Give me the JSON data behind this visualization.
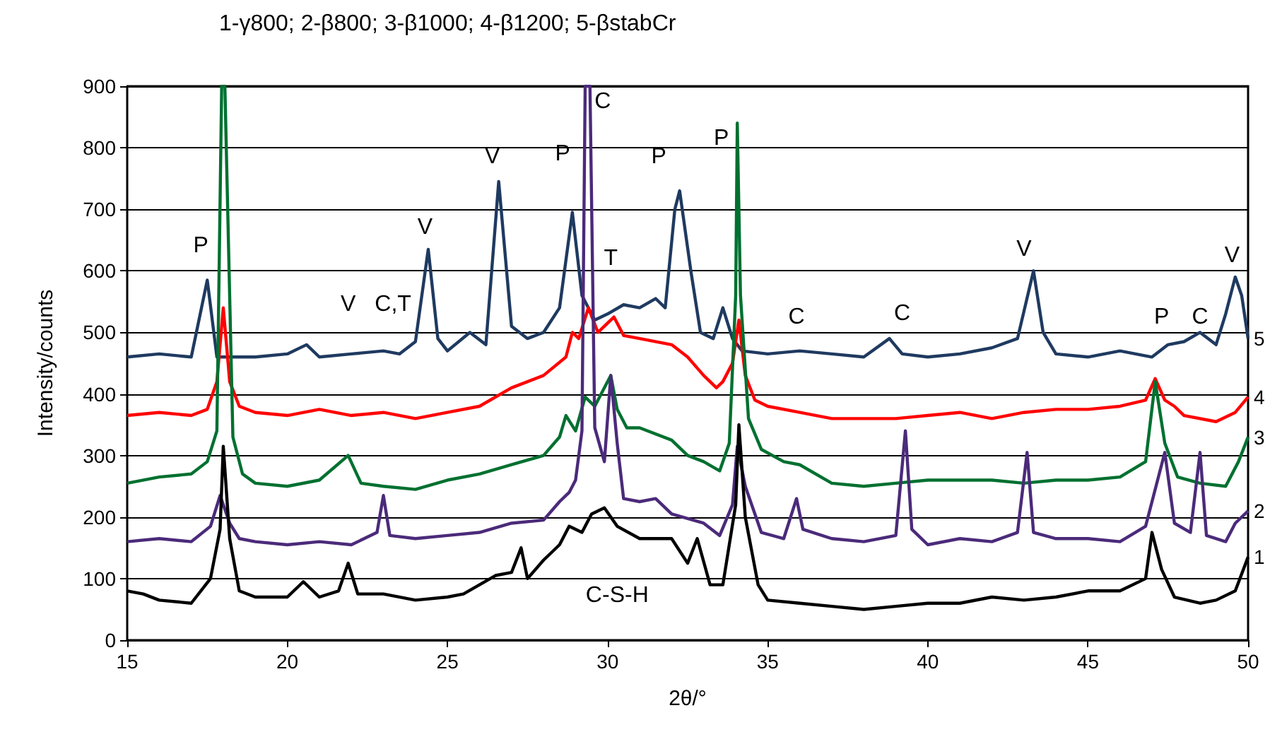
{
  "chart_data": {
    "type": "line",
    "title": "1-γ800; 2-β800; 3-β1000; 4-β1200; 5-βstabCr",
    "xlabel": "2θ/°",
    "ylabel": "Intensity/counts",
    "xlim": [
      15,
      50
    ],
    "xticks": [
      15,
      20,
      25,
      30,
      35,
      40,
      45,
      50
    ],
    "ylim": [
      0,
      900
    ],
    "yticks": [
      0,
      100,
      200,
      300,
      400,
      500,
      600,
      700,
      800,
      900
    ],
    "grid": "y",
    "legend": false,
    "marker": "none",
    "line_style": "solid",
    "series": [
      {
        "name": "5",
        "color": "#1f3a60",
        "x": [
          15,
          16,
          17,
          17.5,
          17.8,
          19,
          20,
          20.6,
          21,
          22,
          23,
          23.5,
          24,
          24.4,
          24.7,
          25,
          25.7,
          26.2,
          26.6,
          27,
          27.5,
          28,
          28.5,
          28.9,
          29.2,
          29.6,
          30,
          30.5,
          31,
          31.5,
          31.8,
          32.1,
          32.25,
          32.6,
          32.9,
          33.3,
          33.6,
          33.9,
          34.2,
          35,
          36,
          37,
          38,
          38.8,
          39.2,
          40,
          41,
          42,
          42.8,
          43.3,
          43.6,
          44,
          45,
          46,
          47,
          47.5,
          48,
          48.5,
          49,
          49.3,
          49.6,
          49.8,
          50
        ],
        "values": [
          460,
          465,
          460,
          585,
          460,
          460,
          465,
          480,
          460,
          465,
          470,
          465,
          485,
          635,
          490,
          470,
          500,
          480,
          745,
          510,
          490,
          500,
          540,
          695,
          560,
          520,
          530,
          545,
          540,
          555,
          540,
          700,
          730,
          600,
          500,
          490,
          540,
          490,
          470,
          465,
          470,
          465,
          460,
          490,
          465,
          460,
          465,
          475,
          490,
          600,
          500,
          465,
          460,
          470,
          460,
          480,
          485,
          500,
          480,
          530,
          590,
          560,
          490
        ]
      },
      {
        "name": "4",
        "color": "#ff0000",
        "x": [
          15,
          16,
          17,
          17.5,
          17.8,
          18,
          18.2,
          18.5,
          19,
          20,
          21,
          22,
          23,
          24,
          25,
          26,
          27,
          28,
          28.7,
          28.9,
          29.1,
          29.4,
          29.7,
          30.2,
          30.5,
          31,
          32,
          32.5,
          33,
          33.4,
          33.6,
          33.9,
          34.1,
          34.3,
          34.6,
          35,
          36,
          37,
          38,
          39,
          40,
          41,
          42,
          43,
          44,
          45,
          46,
          46.8,
          47.1,
          47.4,
          47.7,
          48,
          49,
          49.6,
          50
        ],
        "values": [
          365,
          370,
          365,
          375,
          420,
          540,
          420,
          380,
          370,
          365,
          375,
          365,
          370,
          360,
          370,
          380,
          410,
          430,
          460,
          500,
          490,
          540,
          500,
          525,
          495,
          490,
          480,
          460,
          430,
          410,
          420,
          450,
          520,
          430,
          390,
          380,
          370,
          360,
          360,
          360,
          365,
          370,
          360,
          370,
          375,
          375,
          380,
          390,
          425,
          390,
          380,
          365,
          355,
          370,
          395
        ]
      },
      {
        "name": "3",
        "color": "#007030",
        "x": [
          15,
          16,
          17,
          17.5,
          17.8,
          17.95,
          18.05,
          18.3,
          18.6,
          19,
          20,
          21,
          21.9,
          22.3,
          23,
          24,
          25,
          26,
          27,
          28,
          28.5,
          28.7,
          29,
          29.3,
          29.6,
          29.9,
          30.1,
          30.3,
          30.6,
          31,
          32,
          32.5,
          33,
          33.5,
          33.8,
          34,
          34.05,
          34.15,
          34.4,
          34.8,
          35.5,
          36,
          37,
          38,
          39,
          40,
          41,
          42,
          43,
          44,
          45,
          46,
          46.8,
          47.1,
          47.4,
          47.8,
          48.5,
          49.3,
          49.7,
          50
        ],
        "values": [
          255,
          265,
          270,
          290,
          340,
          900,
          900,
          330,
          270,
          255,
          250,
          260,
          300,
          255,
          250,
          245,
          260,
          270,
          285,
          300,
          330,
          365,
          340,
          395,
          380,
          410,
          430,
          375,
          345,
          345,
          325,
          300,
          290,
          275,
          320,
          560,
          840,
          560,
          360,
          310,
          290,
          285,
          255,
          250,
          255,
          260,
          260,
          260,
          255,
          260,
          260,
          265,
          290,
          420,
          320,
          265,
          255,
          250,
          290,
          330
        ]
      },
      {
        "name": "2",
        "color": "#4b2a7a",
        "x": [
          15,
          16,
          17,
          17.6,
          17.9,
          18.2,
          18.5,
          19,
          20,
          21,
          22,
          22.8,
          23,
          23.2,
          24,
          25,
          26,
          27,
          28,
          28.5,
          28.8,
          29,
          29.2,
          29.3,
          29.45,
          29.6,
          29.9,
          30.1,
          30.3,
          30.5,
          31,
          31.5,
          32,
          33,
          33.5,
          33.9,
          34.05,
          34.3,
          34.8,
          35.5,
          35.9,
          36.1,
          37,
          38,
          39,
          39.3,
          39.5,
          40,
          41,
          42,
          42.8,
          43.1,
          43.3,
          44,
          45,
          46,
          46.8,
          47.4,
          47.7,
          48.2,
          48.5,
          48.7,
          49.3,
          49.6,
          50
        ],
        "values": [
          160,
          165,
          160,
          185,
          235,
          190,
          165,
          160,
          155,
          160,
          155,
          175,
          235,
          170,
          165,
          170,
          175,
          190,
          195,
          225,
          240,
          260,
          340,
          900,
          900,
          345,
          290,
          430,
          320,
          230,
          225,
          230,
          205,
          190,
          170,
          220,
          315,
          250,
          175,
          165,
          230,
          180,
          165,
          160,
          170,
          340,
          180,
          155,
          165,
          160,
          175,
          305,
          175,
          165,
          165,
          160,
          185,
          305,
          190,
          175,
          305,
          170,
          160,
          190,
          210
        ]
      },
      {
        "name": "1",
        "color": "#000000",
        "x": [
          15,
          15.5,
          16,
          17,
          17.6,
          17.9,
          18,
          18.2,
          18.5,
          19,
          20,
          20.5,
          21,
          21.6,
          21.9,
          22.2,
          23,
          24,
          25,
          25.5,
          26,
          26.5,
          27,
          27.3,
          27.5,
          28,
          28.5,
          28.8,
          29.2,
          29.5,
          29.9,
          30.3,
          31,
          32,
          32.5,
          32.8,
          33.2,
          33.6,
          34,
          34.1,
          34.3,
          34.7,
          35,
          36,
          37,
          38,
          39,
          40,
          41,
          42,
          43,
          44,
          45,
          46,
          46.8,
          47,
          47.3,
          47.7,
          48.5,
          49,
          49.6,
          50
        ],
        "values": [
          80,
          75,
          65,
          60,
          100,
          180,
          315,
          165,
          80,
          70,
          70,
          95,
          70,
          80,
          125,
          75,
          75,
          65,
          70,
          75,
          90,
          105,
          110,
          150,
          100,
          130,
          155,
          185,
          175,
          205,
          215,
          185,
          165,
          165,
          125,
          165,
          90,
          90,
          220,
          350,
          200,
          90,
          65,
          60,
          55,
          50,
          55,
          60,
          60,
          70,
          65,
          70,
          80,
          80,
          100,
          175,
          115,
          70,
          60,
          65,
          80,
          135
        ]
      }
    ],
    "annotations": [
      "P",
      "V",
      "C,T",
      "V",
      "V",
      "P",
      "C",
      "T",
      "P",
      "C-S-H",
      "P",
      "C",
      "C",
      "V",
      "P",
      "C",
      "V"
    ]
  }
}
